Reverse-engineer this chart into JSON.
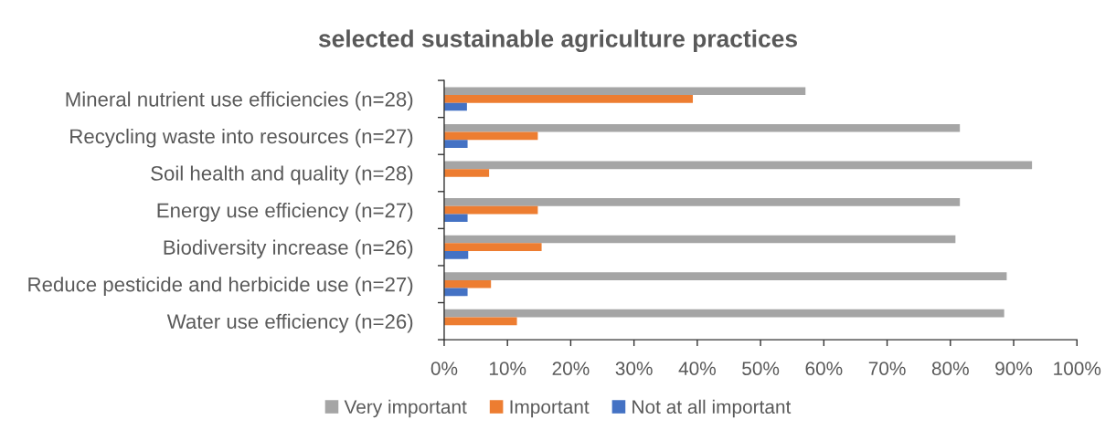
{
  "chart_data": {
    "type": "bar",
    "orientation": "horizontal",
    "title": "selected sustainable agriculture practices",
    "categories": [
      "Mineral nutrient use efficiencies (n=28)",
      "Recycling waste into resources (n=27)",
      "Soil health and quality (n=28)",
      "Energy use efficiency (n=27)",
      "Biodiversity increase (n=26)",
      "Reduce pesticide and herbicide use (n=27)",
      "Water use efficiency (n=26)"
    ],
    "series": [
      {
        "name": "Very important",
        "color": "#a5a5a5",
        "values": [
          57.1,
          81.5,
          92.9,
          81.5,
          80.8,
          88.9,
          88.5
        ]
      },
      {
        "name": "Important",
        "color": "#ed7d31",
        "values": [
          39.3,
          14.8,
          7.1,
          14.8,
          15.4,
          7.4,
          11.5
        ]
      },
      {
        "name": "Not at all important",
        "color": "#4472c4",
        "values": [
          3.6,
          3.7,
          null,
          3.7,
          3.8,
          3.7,
          null
        ]
      }
    ],
    "xlim": [
      0,
      100
    ],
    "xticks": [
      {
        "value": 0,
        "label": "0%"
      },
      {
        "value": 10,
        "label": "10%"
      },
      {
        "value": 20,
        "label": "20%"
      },
      {
        "value": 30,
        "label": "30%"
      },
      {
        "value": 40,
        "label": "40%"
      },
      {
        "value": 50,
        "label": "50%"
      },
      {
        "value": 60,
        "label": "60%"
      },
      {
        "value": 70,
        "label": "70%"
      },
      {
        "value": 80,
        "label": "80%"
      },
      {
        "value": 90,
        "label": "90%"
      },
      {
        "value": 100,
        "label": "100%"
      }
    ],
    "grid": false,
    "legend": "bottom"
  }
}
